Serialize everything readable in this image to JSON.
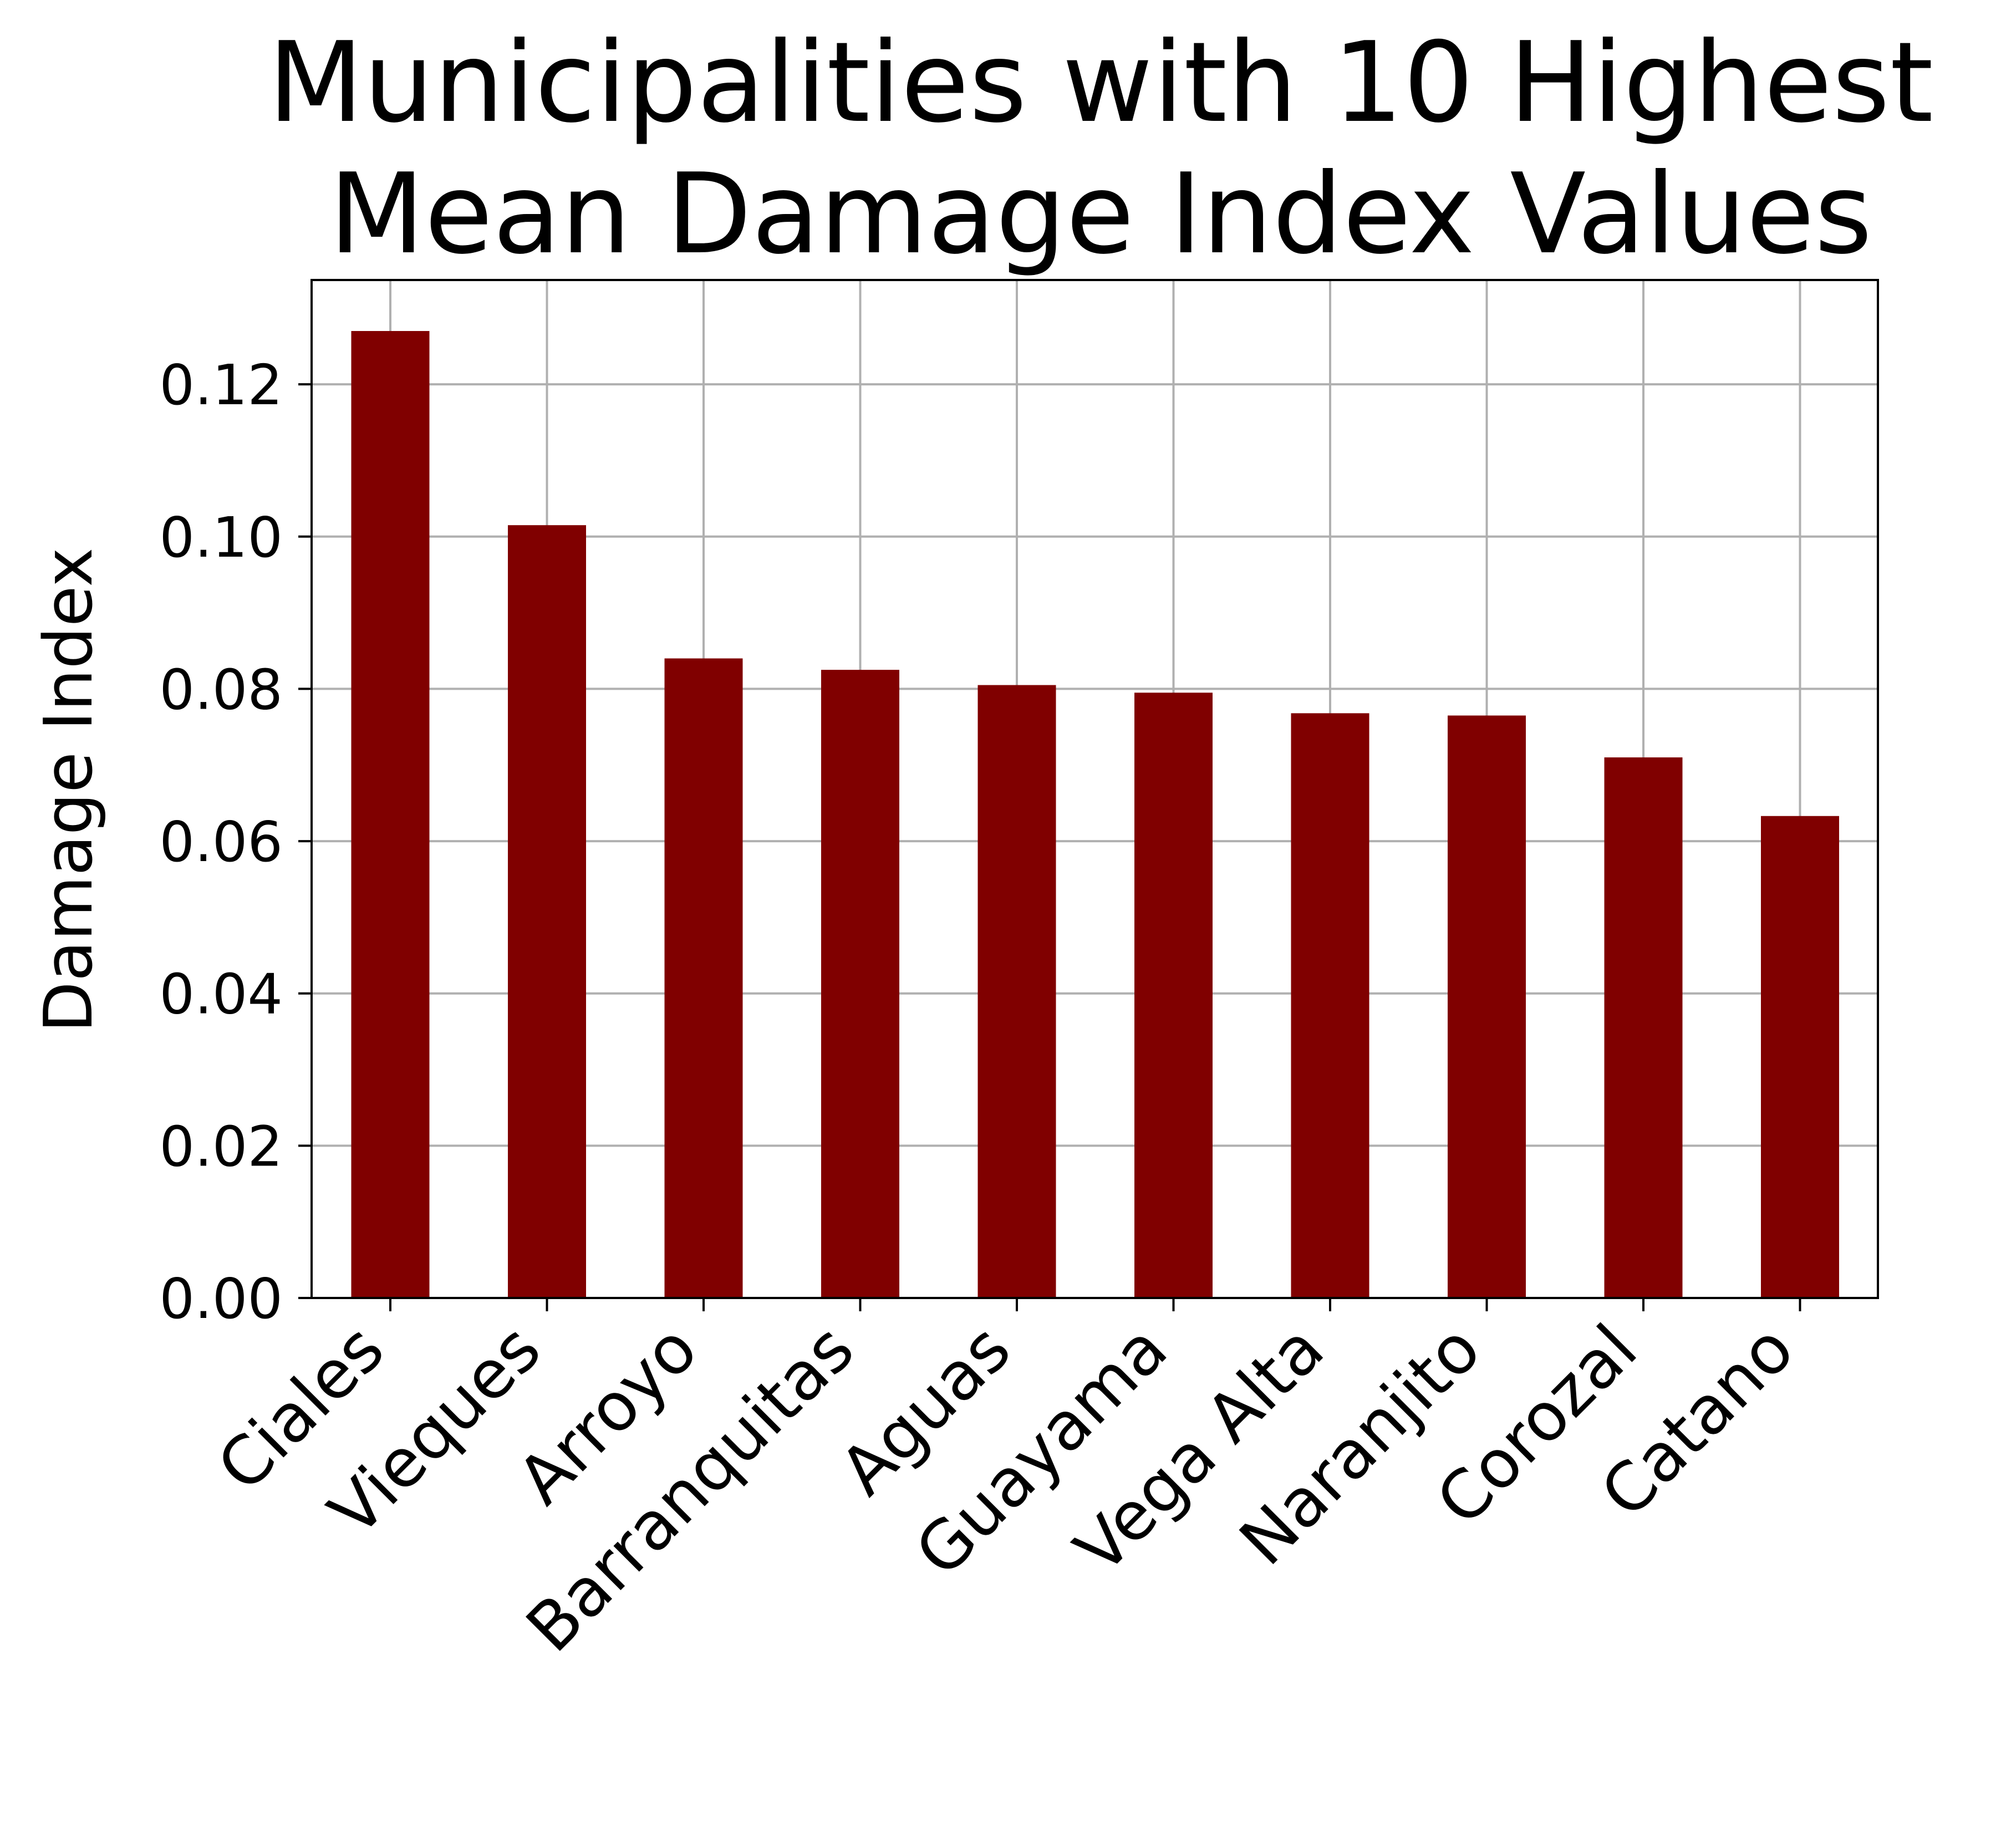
{
  "chart_data": {
    "type": "bar",
    "title_lines": [
      "Municipalities with 10 Highest",
      "Mean Damage Index Values"
    ],
    "xlabel": "",
    "ylabel": "Damage Index",
    "categories": [
      "Ciales",
      "Vieques",
      "Arroyo",
      "Barranquitas",
      "Aguas",
      "Guayama",
      "Vega Alta",
      "Naranjito",
      "Corozal",
      "Catano"
    ],
    "values": [
      0.127,
      0.1015,
      0.084,
      0.0825,
      0.0805,
      0.0795,
      0.0768,
      0.0765,
      0.071,
      0.0633
    ],
    "ylim": [
      0,
      0.1337
    ],
    "yticks": [
      "0.00",
      "0.02",
      "0.04",
      "0.06",
      "0.08",
      "0.10",
      "0.12"
    ],
    "ytick_values": [
      0,
      0.02,
      0.04,
      0.06,
      0.08,
      0.1,
      0.12
    ],
    "grid": true,
    "legend": "none",
    "bar_color": "#800000",
    "grid_color": "#b0b0b0"
  }
}
